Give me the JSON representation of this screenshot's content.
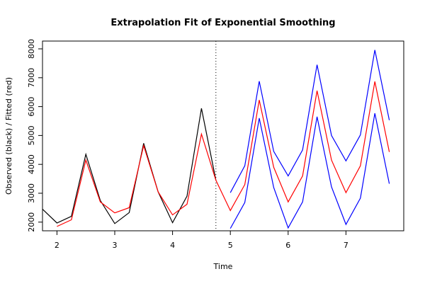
{
  "chart_data": {
    "type": "line",
    "title": "Extrapolation Fit of Exponential Smoothing",
    "x_label": "Time",
    "y_label": "Observed (black) / Fitted (red)",
    "xlim": [
      1.75,
      8.0
    ],
    "xticks": [
      2,
      3,
      4,
      5,
      6,
      7
    ],
    "ylim": [
      1700,
      8270
    ],
    "yticks": [
      2000,
      3000,
      4000,
      5000,
      6000,
      7000,
      8000
    ],
    "vline": 4.75,
    "series": [
      {
        "color": "#000000",
        "x": [
          1.75,
          2.0,
          2.25,
          2.5,
          2.75,
          3.0,
          3.25,
          3.5,
          3.75,
          4.0,
          4.25,
          4.5,
          4.75
        ],
        "values": [
          2450,
          1970,
          2200,
          4350,
          2750,
          1950,
          2330,
          4730,
          3050,
          1980,
          2900,
          5940,
          3450
        ]
      },
      {
        "color": "#ff0000",
        "x": [
          2.0,
          2.25,
          2.5,
          2.75,
          3.0,
          3.25,
          3.5,
          3.75,
          4.0,
          4.25,
          4.5,
          4.75,
          5.0,
          5.25,
          5.5,
          5.75,
          6.0,
          6.25,
          6.5,
          6.75,
          7.0,
          7.25,
          7.5,
          7.75
        ],
        "values": [
          1850,
          2080,
          4150,
          2700,
          2320,
          2500,
          4650,
          3050,
          2250,
          2620,
          5050,
          3450,
          2400,
          3300,
          6230,
          3900,
          2700,
          3600,
          6550,
          4150,
          3020,
          3950,
          6870,
          4430
        ]
      },
      {
        "color": "#0000ff",
        "x": [
          5.0,
          5.25,
          5.5,
          5.75,
          6.0,
          6.25,
          6.5,
          6.75,
          7.0,
          7.25,
          7.5,
          7.75
        ],
        "values": [
          3020,
          3950,
          6880,
          4450,
          3600,
          4500,
          7450,
          5000,
          4120,
          5020,
          7960,
          5530
        ]
      },
      {
        "color": "#0000ff",
        "x": [
          5.0,
          5.25,
          5.5,
          5.75,
          6.0,
          6.25,
          6.5,
          6.75,
          7.0,
          7.25,
          7.5,
          7.75
        ],
        "values": [
          1780,
          2680,
          5600,
          3200,
          1800,
          2700,
          5650,
          3220,
          1920,
          2830,
          5770,
          3330
        ]
      }
    ]
  }
}
